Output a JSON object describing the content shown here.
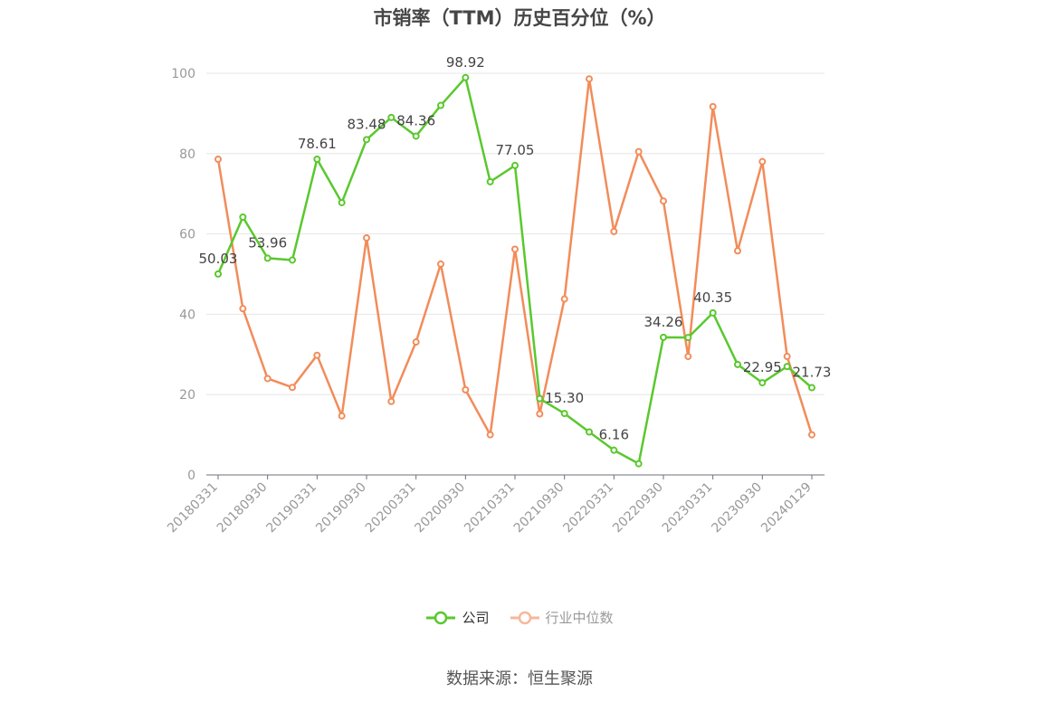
{
  "title": "市销率（TTM）历史百分位（%）",
  "source": "数据来源：恒生聚源",
  "legend": [
    {
      "name": "公司",
      "color": "#5ac82e"
    },
    {
      "name": "行业中位数",
      "color": "#f28c5a"
    }
  ],
  "chart_data": {
    "type": "line",
    "ylim": [
      0,
      100
    ],
    "yticks": [
      0,
      20,
      40,
      60,
      80,
      100
    ],
    "xticks": [
      "20180331",
      "20180930",
      "20190331",
      "20190930",
      "20200331",
      "20200930",
      "20210331",
      "20210930",
      "20220331",
      "20220930",
      "20230331",
      "20230930",
      "20240129"
    ],
    "x": [
      "20180331",
      "20180630",
      "20180930",
      "20181231",
      "20190331",
      "20190630",
      "20190930",
      "20191231",
      "20200331",
      "20200630",
      "20200930",
      "20201231",
      "20210331",
      "20210630",
      "20210930",
      "20211231",
      "20220331",
      "20220630",
      "20220930",
      "20221231",
      "20230331",
      "20230630",
      "20230930",
      "20231231",
      "20240129"
    ],
    "series": [
      {
        "name": "公司",
        "color": "#5ac82e",
        "values": [
          50.03,
          64.2,
          53.96,
          53.5,
          78.61,
          67.8,
          83.48,
          89.0,
          84.36,
          92.0,
          98.92,
          73.0,
          77.05,
          19.0,
          15.3,
          10.7,
          6.16,
          2.8,
          34.26,
          34.2,
          40.35,
          27.5,
          22.95,
          27.0,
          21.73
        ]
      },
      {
        "name": "行业中位数",
        "color": "#f28c5a",
        "values": [
          78.6,
          41.4,
          24.0,
          21.8,
          29.8,
          14.7,
          59.0,
          18.3,
          33.1,
          52.5,
          21.2,
          10.0,
          56.2,
          15.2,
          43.8,
          98.6,
          60.6,
          80.5,
          68.2,
          29.5,
          91.7,
          55.8,
          78.0,
          29.5,
          10.0
        ]
      }
    ],
    "data_labels": [
      {
        "index": 0,
        "text": "50.03"
      },
      {
        "index": 2,
        "text": "53.96"
      },
      {
        "index": 4,
        "text": "78.61"
      },
      {
        "index": 6,
        "text": "83.48"
      },
      {
        "index": 8,
        "text": "84.36"
      },
      {
        "index": 10,
        "text": "98.92"
      },
      {
        "index": 12,
        "text": "77.05"
      },
      {
        "index": 14,
        "text": "15.30"
      },
      {
        "index": 16,
        "text": "6.16"
      },
      {
        "index": 18,
        "text": "34.26"
      },
      {
        "index": 20,
        "text": "40.35"
      },
      {
        "index": 22,
        "text": "22.95"
      },
      {
        "index": 24,
        "text": "21.73"
      }
    ]
  }
}
